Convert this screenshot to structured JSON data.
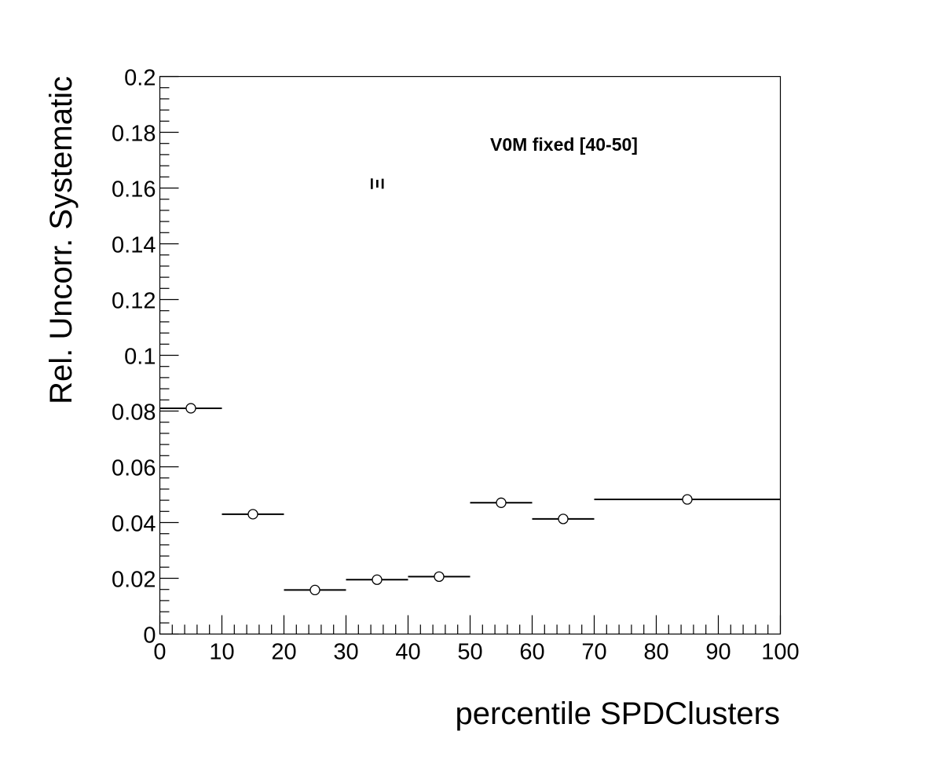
{
  "chart_data": {
    "type": "scatter",
    "title": "",
    "xlabel": "percentile SPDClusters",
    "ylabel": "Rel. Uncorr. Systematic",
    "xlim": [
      0,
      100
    ],
    "ylim": [
      0,
      0.2
    ],
    "x_ticks": [
      "0",
      "10",
      "20",
      "30",
      "40",
      "50",
      "60",
      "70",
      "80",
      "90",
      "100"
    ],
    "y_ticks": [
      "0",
      "0.02",
      "0.04",
      "0.06",
      "0.08",
      "0.1",
      "0.12",
      "0.14",
      "0.16",
      "0.18",
      "0.2"
    ],
    "grid": false,
    "legend": "none",
    "series": [
      {
        "marker": "open-circle",
        "points": [
          {
            "x": 5,
            "xlow": 0,
            "xhigh": 10,
            "y": 0.081
          },
          {
            "x": 15,
            "xlow": 10,
            "xhigh": 20,
            "y": 0.043
          },
          {
            "x": 25,
            "xlow": 20,
            "xhigh": 30,
            "y": 0.0158
          },
          {
            "x": 35,
            "xlow": 30,
            "xhigh": 40,
            "y": 0.0195
          },
          {
            "x": 45,
            "xlow": 40,
            "xhigh": 50,
            "y": 0.0206
          },
          {
            "x": 55,
            "xlow": 50,
            "xhigh": 60,
            "y": 0.0471
          },
          {
            "x": 65,
            "xlow": 60,
            "xhigh": 70,
            "y": 0.0413
          },
          {
            "x": 85,
            "xlow": 70,
            "xhigh": 100,
            "y": 0.0483
          }
        ]
      }
    ],
    "annotations": [
      {
        "text": "V0M fixed [40-50]",
        "x": 65,
        "y": 0.175
      },
      {
        "text": "Ξ",
        "x": 35,
        "y": 0.161,
        "rotated": true
      }
    ]
  }
}
